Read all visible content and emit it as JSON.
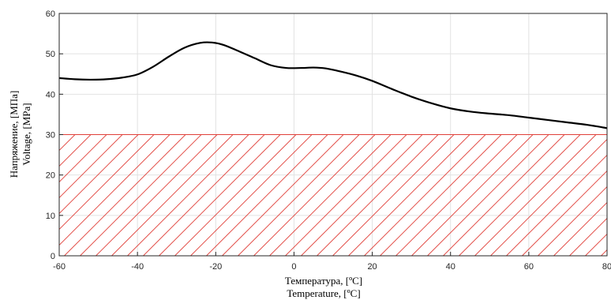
{
  "chart_data": {
    "type": "line",
    "title": "",
    "xlabel": [
      "Температура, [ºC]",
      "Temperature, [ºC]"
    ],
    "ylabel": [
      "Напряжение, [МПа]",
      "Voltage, [MPa]"
    ],
    "xlim": [
      -60,
      80
    ],
    "ylim": [
      0,
      60
    ],
    "xticks": [
      -60,
      -40,
      -20,
      0,
      20,
      40,
      60,
      80
    ],
    "yticks": [
      0,
      10,
      20,
      30,
      40,
      50,
      60
    ],
    "grid": true,
    "series": [
      {
        "color": "#000000",
        "x": [
          -60,
          -56,
          -52,
          -48,
          -44,
          -40,
          -36,
          -32,
          -28,
          -24,
          -21,
          -18,
          -14,
          -10,
          -6,
          -2,
          2,
          5,
          8,
          12,
          16,
          20,
          25,
          30,
          35,
          40,
          45,
          50,
          55,
          60,
          65,
          70,
          75,
          80
        ],
        "y": [
          44.0,
          43.7,
          43.6,
          43.7,
          44.1,
          44.9,
          46.8,
          49.3,
          51.5,
          52.7,
          52.8,
          52.2,
          50.6,
          48.9,
          47.2,
          46.5,
          46.5,
          46.6,
          46.4,
          45.6,
          44.6,
          43.3,
          41.3,
          39.4,
          37.8,
          36.5,
          35.7,
          35.2,
          34.8,
          34.2,
          33.6,
          33.0,
          32.4,
          31.6
        ]
      }
    ],
    "hatched_region": {
      "x": [
        -60,
        80
      ],
      "y": [
        0,
        30
      ],
      "color": "#e0403a"
    }
  }
}
